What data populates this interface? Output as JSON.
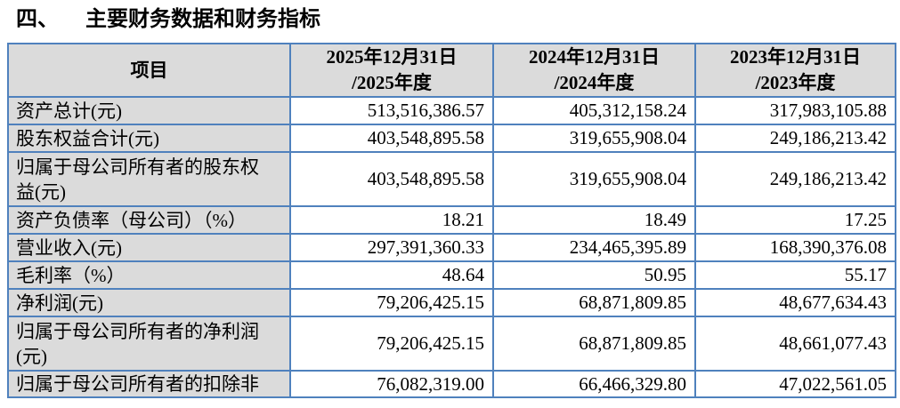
{
  "document": {
    "section_number": "四、",
    "section_title": "主要财务数据和财务指标"
  },
  "table": {
    "columns": {
      "item": "项目",
      "periods": [
        {
          "date": "2025年12月31日",
          "year": "/2025年度"
        },
        {
          "date": "2024年12月31日",
          "year": "/2024年度"
        },
        {
          "date": "2023年12月31日",
          "year": "/2023年度"
        }
      ]
    },
    "rows": [
      {
        "label": "资产总计(元)",
        "values": [
          "513,516,386.57",
          "405,312,158.24",
          "317,983,105.88"
        ]
      },
      {
        "label": "股东权益合计(元)",
        "values": [
          "403,548,895.58",
          "319,655,908.04",
          "249,186,213.42"
        ]
      },
      {
        "label": "归属于母公司所有者的股东权益(元)",
        "values": [
          "403,548,895.58",
          "319,655,908.04",
          "249,186,213.42"
        ]
      },
      {
        "label": "资产负债率（母公司）（%）",
        "values": [
          "18.21",
          "18.49",
          "17.25"
        ]
      },
      {
        "label": "营业收入(元)",
        "values": [
          "297,391,360.33",
          "234,465,395.89",
          "168,390,376.08"
        ]
      },
      {
        "label": "毛利率（%）",
        "values": [
          "48.64",
          "50.95",
          "55.17"
        ]
      },
      {
        "label": "净利润(元)",
        "values": [
          "79,206,425.15",
          "68,871,809.85",
          "48,677,634.43"
        ]
      },
      {
        "label": "归属于母公司所有者的净利润(元)",
        "values": [
          "79,206,425.15",
          "68,871,809.85",
          "48,661,077.43"
        ]
      },
      {
        "label": "归属于母公司所有者的扣除非",
        "values": [
          "76,082,319.00",
          "66,466,329.80",
          "47,022,561.05"
        ]
      }
    ],
    "colors": {
      "border": "#4F81BD",
      "header_bg": "#DBDBDB",
      "label_bg": "#DBDBDB",
      "value_bg": "#FFFFFF"
    }
  }
}
